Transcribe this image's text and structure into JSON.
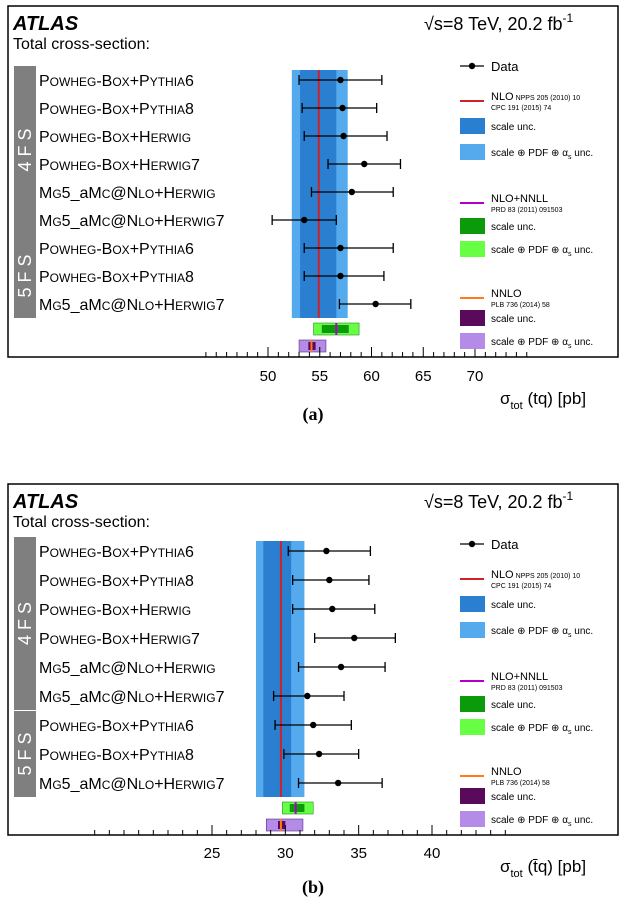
{
  "panels": [
    {
      "id": "a",
      "caption": "(a)",
      "experiment": "ATLAS",
      "subtitle": "Total cross-section:",
      "energy_label": "√s=8 TeV, 20.2 fb",
      "energy_sup": "-1",
      "xlabel": "σ",
      "xlabel_sub": "tot",
      "xlabel_tail": " (tq) [pb]",
      "scheme_labels": [
        "4 F S",
        "5 F S"
      ],
      "legend": {
        "data": "Data",
        "nlo_title": "NLO",
        "nlo_ref1": "NPPS 205 (2010) 10",
        "nlo_ref2": "CPC 191 (2015) 74",
        "nnll_title": "NLO+NNLL",
        "nnll_ref": "PRD 83 (2011) 091503",
        "nnlo_title": "NNLO",
        "nnlo_ref": "PLB 736 (2014) 58",
        "scale": "scale unc.",
        "total": "scale ⊕ PDF ⊕ α",
        "total_sub": "s",
        "total_tail": " unc."
      },
      "chart_data": {
        "type": "scatter",
        "xlim": [
          44,
          75
        ],
        "xticks": [
          50,
          55,
          60,
          65,
          70
        ],
        "rows": [
          {
            "name": "POWHEG-BOX+PYTHIA6",
            "value": 57.0,
            "lo": 53.0,
            "hi": 61.0
          },
          {
            "name": "POWHEG-BOX+PYTHIA8",
            "value": 57.2,
            "lo": 53.3,
            "hi": 60.5
          },
          {
            "name": "POWHEG-BOX+HERWIG",
            "value": 57.3,
            "lo": 53.5,
            "hi": 61.5
          },
          {
            "name": "POWHEG-BOX+HERWIG7",
            "value": 59.3,
            "lo": 55.8,
            "hi": 62.8
          },
          {
            "name": "MG5_aMC@NLO+HERWIG",
            "value": 58.1,
            "lo": 54.2,
            "hi": 62.1
          },
          {
            "name": "MG5_aMC@NLO+HERWIG7",
            "value": 53.5,
            "lo": 50.4,
            "hi": 56.6
          },
          {
            "name": "POWHEG-BOX+PYTHIA6",
            "value": 57.0,
            "lo": 53.5,
            "hi": 62.1
          },
          {
            "name": "POWHEG-BOX+PYTHIA8",
            "value": 57.0,
            "lo": 53.5,
            "hi": 61.2
          },
          {
            "name": "MG5_aMC@NLO+HERWIG7",
            "value": 60.4,
            "lo": 56.9,
            "hi": 63.8
          }
        ],
        "nlo": {
          "central": 54.9,
          "scale": [
            53.1,
            56.6
          ],
          "total": [
            52.3,
            57.7
          ]
        },
        "nlo_nnll": {
          "central": 56.6,
          "scale": [
            55.2,
            57.8
          ],
          "total": [
            54.4,
            58.8
          ]
        },
        "nnlo": {
          "central": 54.2,
          "scale": [
            53.9,
            54.6
          ],
          "total": [
            53.0,
            55.6
          ]
        }
      }
    },
    {
      "id": "b",
      "caption": "(b)",
      "experiment": "ATLAS",
      "subtitle": "Total cross-section:",
      "energy_label": "√s=8 TeV, 20.2 fb",
      "energy_sup": "-1",
      "xlabel": "σ",
      "xlabel_sub": "tot",
      "xlabel_tail": " (t̄q) [pb]",
      "scheme_labels": [
        "4 F S",
        "5 F S"
      ],
      "legend": {
        "data": "Data",
        "nlo_title": "NLO",
        "nlo_ref1": "NPPS 205 (2010) 10",
        "nlo_ref2": "CPC 191 (2015) 74",
        "nnll_title": "NLO+NNLL",
        "nnll_ref": "PRD 83 (2011) 091503",
        "nnlo_title": "NNLO",
        "nnlo_ref": "PLB 736 (2014) 58",
        "scale": "scale unc.",
        "total": "scale ⊕ PDF ⊕ α",
        "total_sub": "s",
        "total_tail": " unc."
      },
      "chart_data": {
        "type": "scatter",
        "xlim": [
          17,
          45
        ],
        "xticks": [
          25,
          30,
          35,
          40
        ],
        "rows": [
          {
            "name": "POWHEG-BOX+PYTHIA6",
            "value": 32.8,
            "lo": 30.2,
            "hi": 35.8
          },
          {
            "name": "POWHEG-BOX+PYTHIA8",
            "value": 33.0,
            "lo": 30.5,
            "hi": 35.7
          },
          {
            "name": "POWHEG-BOX+HERWIG",
            "value": 33.2,
            "lo": 30.5,
            "hi": 36.1
          },
          {
            "name": "POWHEG-BOX+HERWIG7",
            "value": 34.7,
            "lo": 32.0,
            "hi": 37.5
          },
          {
            "name": "MG5_aMC@NLO+HERWIG",
            "value": 33.8,
            "lo": 30.9,
            "hi": 36.8
          },
          {
            "name": "MG5_aMC@NLO+HERWIG7",
            "value": 31.5,
            "lo": 29.2,
            "hi": 34.0
          },
          {
            "name": "POWHEG-BOX+PYTHIA6",
            "value": 31.9,
            "lo": 29.3,
            "hi": 34.5
          },
          {
            "name": "POWHEG-BOX+PYTHIA8",
            "value": 32.3,
            "lo": 29.9,
            "hi": 35.0
          },
          {
            "name": "MG5_aMC@NLO+HERWIG7",
            "value": 33.6,
            "lo": 30.9,
            "hi": 36.6
          }
        ],
        "nlo": {
          "central": 29.7,
          "scale": [
            28.5,
            30.4
          ],
          "total": [
            28.0,
            31.3
          ]
        },
        "nlo_nnll": {
          "central": 30.7,
          "scale": [
            30.3,
            31.3
          ],
          "total": [
            29.8,
            31.9
          ]
        },
        "nnlo": {
          "central": 29.7,
          "scale": [
            29.5,
            30.0
          ],
          "total": [
            28.7,
            31.2
          ]
        }
      }
    }
  ]
}
